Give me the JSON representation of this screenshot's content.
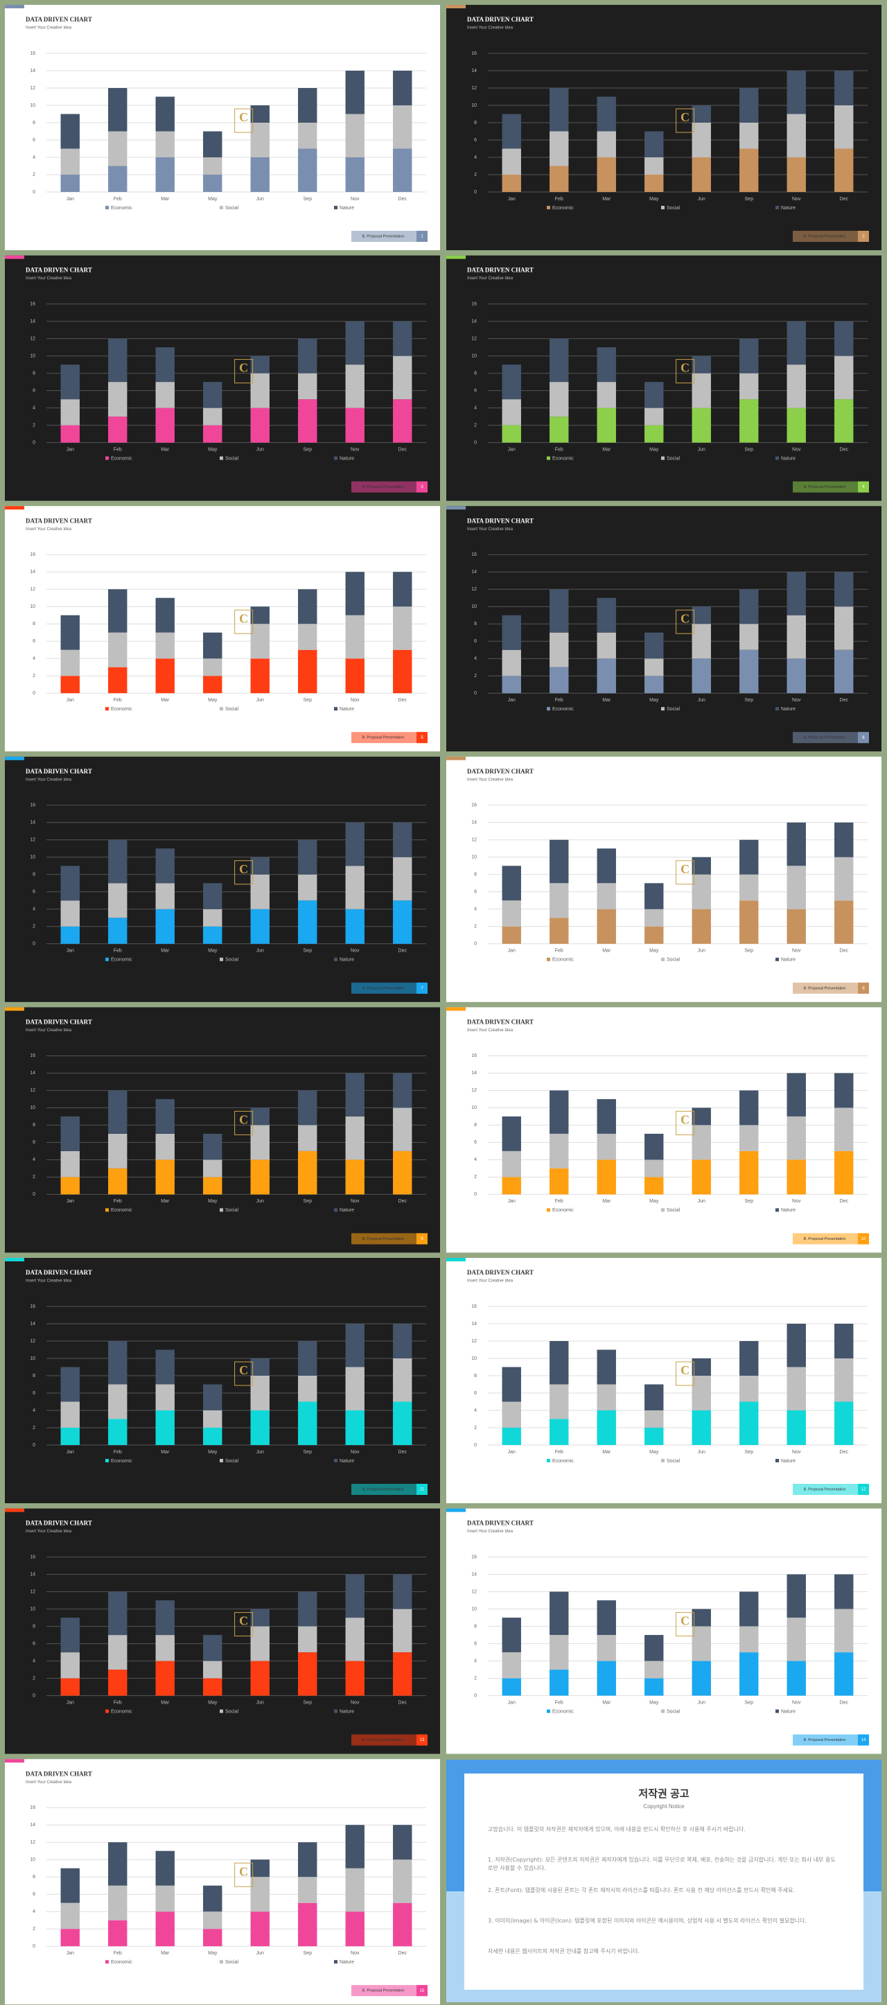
{
  "chart_data": [
    {
      "type": "bar",
      "stacked": true,
      "theme": "light",
      "title": "DATA DRIVEN CHART",
      "subtitle": "Insert Your Creative Idea",
      "footer": "B. Proposal Presentation",
      "page": 1,
      "categories": [
        "Jan",
        "Feb",
        "Mar",
        "May",
        "Jun",
        "Sep",
        "Nov",
        "Dec"
      ],
      "series": [
        {
          "name": "Economic",
          "color": "#7a8fb0",
          "values": [
            2,
            3,
            4,
            2,
            4,
            5,
            4,
            5
          ]
        },
        {
          "name": "Social",
          "color": "#bfbfbf",
          "values": [
            3,
            4,
            3,
            2,
            4,
            3,
            5,
            5
          ]
        },
        {
          "name": "Nature",
          "color": "#44546a",
          "values": [
            4,
            5,
            4,
            3,
            2,
            4,
            5,
            4
          ]
        }
      ],
      "ylim": [
        0,
        16
      ],
      "yticks": [
        0,
        2,
        4,
        6,
        8,
        10,
        12,
        14,
        16
      ],
      "grid": true
    },
    {
      "type": "bar",
      "stacked": true,
      "theme": "dark",
      "title": "DATA DRIVEN CHART",
      "subtitle": "Insert Your Creative Idea",
      "footer": "B. Proposal Presentation",
      "page": 2,
      "categories": [
        "Jan",
        "Feb",
        "Mar",
        "May",
        "Jun",
        "Sep",
        "Nov",
        "Dec"
      ],
      "series": [
        {
          "name": "Economic",
          "color": "#c8925e",
          "values": [
            2,
            3,
            4,
            2,
            4,
            5,
            4,
            5
          ]
        },
        {
          "name": "Social",
          "color": "#bfbfbf",
          "values": [
            3,
            4,
            3,
            2,
            4,
            3,
            5,
            5
          ]
        },
        {
          "name": "Nature",
          "color": "#44546a",
          "values": [
            4,
            5,
            4,
            3,
            2,
            4,
            5,
            4
          ]
        }
      ],
      "ylim": [
        0,
        16
      ],
      "yticks": [
        0,
        2,
        4,
        6,
        8,
        10,
        12,
        14,
        16
      ],
      "grid": true
    },
    {
      "type": "bar",
      "stacked": true,
      "theme": "dark",
      "title": "DATA DRIVEN CHART",
      "subtitle": "Insert Your Creative Idea",
      "footer": "B. Proposal Presentation",
      "page": 3,
      "categories": [
        "Jan",
        "Feb",
        "Mar",
        "May",
        "Jun",
        "Sep",
        "Nov",
        "Dec"
      ],
      "series": [
        {
          "name": "Economic",
          "color": "#f0469a",
          "values": [
            2,
            3,
            4,
            2,
            4,
            5,
            4,
            5
          ]
        },
        {
          "name": "Social",
          "color": "#bfbfbf",
          "values": [
            3,
            4,
            3,
            2,
            4,
            3,
            5,
            5
          ]
        },
        {
          "name": "Nature",
          "color": "#44546a",
          "values": [
            4,
            5,
            4,
            3,
            2,
            4,
            5,
            4
          ]
        }
      ],
      "ylim": [
        0,
        16
      ],
      "yticks": [
        0,
        2,
        4,
        6,
        8,
        10,
        12,
        14,
        16
      ],
      "grid": true
    },
    {
      "type": "bar",
      "stacked": true,
      "theme": "dark",
      "title": "DATA DRIVEN CHART",
      "subtitle": "Insert Your Creative Idea",
      "footer": "B. Proposal Presentation",
      "page": 4,
      "categories": [
        "Jan",
        "Feb",
        "Mar",
        "May",
        "Jun",
        "Sep",
        "Nov",
        "Dec"
      ],
      "series": [
        {
          "name": "Economic",
          "color": "#8ccf4a",
          "values": [
            2,
            3,
            4,
            2,
            4,
            5,
            4,
            5
          ]
        },
        {
          "name": "Social",
          "color": "#bfbfbf",
          "values": [
            3,
            4,
            3,
            2,
            4,
            3,
            5,
            5
          ]
        },
        {
          "name": "Nature",
          "color": "#44546a",
          "values": [
            4,
            5,
            4,
            3,
            2,
            4,
            5,
            4
          ]
        }
      ],
      "ylim": [
        0,
        16
      ],
      "yticks": [
        0,
        2,
        4,
        6,
        8,
        10,
        12,
        14,
        16
      ],
      "grid": true
    },
    {
      "type": "bar",
      "stacked": true,
      "theme": "light",
      "title": "DATA DRIVEN CHART",
      "subtitle": "Insert Your Creative Idea",
      "footer": "B. Proposal Presentation",
      "page": 5,
      "categories": [
        "Jan",
        "Feb",
        "Mar",
        "May",
        "Jun",
        "Sep",
        "Nov",
        "Dec"
      ],
      "series": [
        {
          "name": "Economic",
          "color": "#ff3d12",
          "values": [
            2,
            3,
            4,
            2,
            4,
            5,
            4,
            5
          ]
        },
        {
          "name": "Social",
          "color": "#bfbfbf",
          "values": [
            3,
            4,
            3,
            2,
            4,
            3,
            5,
            5
          ]
        },
        {
          "name": "Nature",
          "color": "#44546a",
          "values": [
            4,
            5,
            4,
            3,
            2,
            4,
            5,
            4
          ]
        }
      ],
      "ylim": [
        0,
        16
      ],
      "yticks": [
        0,
        2,
        4,
        6,
        8,
        10,
        12,
        14,
        16
      ],
      "grid": true
    },
    {
      "type": "bar",
      "stacked": true,
      "theme": "dark",
      "title": "DATA DRIVEN CHART",
      "subtitle": "Insert Your Creative Idea",
      "footer": "B. Proposal Presentation",
      "page": 6,
      "categories": [
        "Jan",
        "Feb",
        "Mar",
        "May",
        "Jun",
        "Sep",
        "Nov",
        "Dec"
      ],
      "series": [
        {
          "name": "Economic",
          "color": "#7a8fb0",
          "values": [
            2,
            3,
            4,
            2,
            4,
            5,
            4,
            5
          ]
        },
        {
          "name": "Social",
          "color": "#bfbfbf",
          "values": [
            3,
            4,
            3,
            2,
            4,
            3,
            5,
            5
          ]
        },
        {
          "name": "Nature",
          "color": "#44546a",
          "values": [
            4,
            5,
            4,
            3,
            2,
            4,
            5,
            4
          ]
        }
      ],
      "ylim": [
        0,
        16
      ],
      "yticks": [
        0,
        2,
        4,
        6,
        8,
        10,
        12,
        14,
        16
      ],
      "grid": true
    },
    {
      "type": "bar",
      "stacked": true,
      "theme": "dark",
      "title": "DATA DRIVEN CHART",
      "subtitle": "Insert Your Creative Idea",
      "footer": "B. Proposal Presentation",
      "page": 7,
      "categories": [
        "Jan",
        "Feb",
        "Mar",
        "May",
        "Jun",
        "Sep",
        "Nov",
        "Dec"
      ],
      "series": [
        {
          "name": "Economic",
          "color": "#1aa8f0",
          "values": [
            2,
            3,
            4,
            2,
            4,
            5,
            4,
            5
          ]
        },
        {
          "name": "Social",
          "color": "#bfbfbf",
          "values": [
            3,
            4,
            3,
            2,
            4,
            3,
            5,
            5
          ]
        },
        {
          "name": "Nature",
          "color": "#44546a",
          "values": [
            4,
            5,
            4,
            3,
            2,
            4,
            5,
            4
          ]
        }
      ],
      "ylim": [
        0,
        16
      ],
      "yticks": [
        0,
        2,
        4,
        6,
        8,
        10,
        12,
        14,
        16
      ],
      "grid": true
    },
    {
      "type": "bar",
      "stacked": true,
      "theme": "light",
      "title": "DATA DRIVEN CHART",
      "subtitle": "Insert Your Creative Idea",
      "footer": "B. Proposal Presentation",
      "page": 8,
      "categories": [
        "Jan",
        "Feb",
        "Mar",
        "May",
        "Jun",
        "Sep",
        "Nov",
        "Dec"
      ],
      "series": [
        {
          "name": "Economic",
          "color": "#c8925e",
          "values": [
            2,
            3,
            4,
            2,
            4,
            5,
            4,
            5
          ]
        },
        {
          "name": "Social",
          "color": "#bfbfbf",
          "values": [
            3,
            4,
            3,
            2,
            4,
            3,
            5,
            5
          ]
        },
        {
          "name": "Nature",
          "color": "#44546a",
          "values": [
            4,
            5,
            4,
            3,
            2,
            4,
            5,
            4
          ]
        }
      ],
      "ylim": [
        0,
        16
      ],
      "yticks": [
        0,
        2,
        4,
        6,
        8,
        10,
        12,
        14,
        16
      ],
      "grid": true
    },
    {
      "type": "bar",
      "stacked": true,
      "theme": "dark",
      "title": "DATA DRIVEN CHART",
      "subtitle": "Insert Your Creative Idea",
      "footer": "B. Proposal Presentation",
      "page": 9,
      "categories": [
        "Jan",
        "Feb",
        "Mar",
        "May",
        "Jun",
        "Sep",
        "Nov",
        "Dec"
      ],
      "series": [
        {
          "name": "Economic",
          "color": "#ffa010",
          "values": [
            2,
            3,
            4,
            2,
            4,
            5,
            4,
            5
          ]
        },
        {
          "name": "Social",
          "color": "#bfbfbf",
          "values": [
            3,
            4,
            3,
            2,
            4,
            3,
            5,
            5
          ]
        },
        {
          "name": "Nature",
          "color": "#44546a",
          "values": [
            4,
            5,
            4,
            3,
            2,
            4,
            5,
            4
          ]
        }
      ],
      "ylim": [
        0,
        16
      ],
      "yticks": [
        0,
        2,
        4,
        6,
        8,
        10,
        12,
        14,
        16
      ],
      "grid": true
    },
    {
      "type": "bar",
      "stacked": true,
      "theme": "light",
      "title": "DATA DRIVEN CHART",
      "subtitle": "Insert Your Creative Idea",
      "footer": "B. Proposal Presentation",
      "page": 10,
      "categories": [
        "Jan",
        "Feb",
        "Mar",
        "May",
        "Jun",
        "Sep",
        "Nov",
        "Dec"
      ],
      "series": [
        {
          "name": "Economic",
          "color": "#ffa010",
          "values": [
            2,
            3,
            4,
            2,
            4,
            5,
            4,
            5
          ]
        },
        {
          "name": "Social",
          "color": "#bfbfbf",
          "values": [
            3,
            4,
            3,
            2,
            4,
            3,
            5,
            5
          ]
        },
        {
          "name": "Nature",
          "color": "#44546a",
          "values": [
            4,
            5,
            4,
            3,
            2,
            4,
            5,
            4
          ]
        }
      ],
      "ylim": [
        0,
        16
      ],
      "yticks": [
        0,
        2,
        4,
        6,
        8,
        10,
        12,
        14,
        16
      ],
      "grid": true
    },
    {
      "type": "bar",
      "stacked": true,
      "theme": "dark",
      "title": "DATA DRIVEN CHART",
      "subtitle": "Insert Your Creative Idea",
      "footer": "B. Proposal Presentation",
      "page": 11,
      "categories": [
        "Jan",
        "Feb",
        "Mar",
        "May",
        "Jun",
        "Sep",
        "Nov",
        "Dec"
      ],
      "series": [
        {
          "name": "Economic",
          "color": "#10d8d8",
          "values": [
            2,
            3,
            4,
            2,
            4,
            5,
            4,
            5
          ]
        },
        {
          "name": "Social",
          "color": "#bfbfbf",
          "values": [
            3,
            4,
            3,
            2,
            4,
            3,
            5,
            5
          ]
        },
        {
          "name": "Nature",
          "color": "#44546a",
          "values": [
            4,
            5,
            4,
            3,
            2,
            4,
            5,
            4
          ]
        }
      ],
      "ylim": [
        0,
        16
      ],
      "yticks": [
        0,
        2,
        4,
        6,
        8,
        10,
        12,
        14,
        16
      ],
      "grid": true
    },
    {
      "type": "bar",
      "stacked": true,
      "theme": "light",
      "title": "DATA DRIVEN CHART",
      "subtitle": "Insert Your Creative Idea",
      "footer": "B. Proposal Presentation",
      "page": 12,
      "categories": [
        "Jan",
        "Feb",
        "Mar",
        "May",
        "Jun",
        "Sep",
        "Nov",
        "Dec"
      ],
      "series": [
        {
          "name": "Economic",
          "color": "#10d8d8",
          "values": [
            2,
            3,
            4,
            2,
            4,
            5,
            4,
            5
          ]
        },
        {
          "name": "Social",
          "color": "#bfbfbf",
          "values": [
            3,
            4,
            3,
            2,
            4,
            3,
            5,
            5
          ]
        },
        {
          "name": "Nature",
          "color": "#44546a",
          "values": [
            4,
            5,
            4,
            3,
            2,
            4,
            5,
            4
          ]
        }
      ],
      "ylim": [
        0,
        16
      ],
      "yticks": [
        0,
        2,
        4,
        6,
        8,
        10,
        12,
        14,
        16
      ],
      "grid": true
    },
    {
      "type": "bar",
      "stacked": true,
      "theme": "dark",
      "title": "DATA DRIVEN CHART",
      "subtitle": "Insert Your Creative Idea",
      "footer": "B. Proposal Presentation",
      "page": 13,
      "categories": [
        "Jan",
        "Feb",
        "Mar",
        "May",
        "Jun",
        "Sep",
        "Nov",
        "Dec"
      ],
      "series": [
        {
          "name": "Economic",
          "color": "#ff3d12",
          "values": [
            2,
            3,
            4,
            2,
            4,
            5,
            4,
            5
          ]
        },
        {
          "name": "Social",
          "color": "#bfbfbf",
          "values": [
            3,
            4,
            3,
            2,
            4,
            3,
            5,
            5
          ]
        },
        {
          "name": "Nature",
          "color": "#44546a",
          "values": [
            4,
            5,
            4,
            3,
            2,
            4,
            5,
            4
          ]
        }
      ],
      "ylim": [
        0,
        16
      ],
      "yticks": [
        0,
        2,
        4,
        6,
        8,
        10,
        12,
        14,
        16
      ],
      "grid": true
    },
    {
      "type": "bar",
      "stacked": true,
      "theme": "light",
      "title": "DATA DRIVEN CHART",
      "subtitle": "Insert Your Creative Idea",
      "footer": "B. Proposal Presentation",
      "page": 14,
      "categories": [
        "Jan",
        "Feb",
        "Mar",
        "May",
        "Jun",
        "Sep",
        "Nov",
        "Dec"
      ],
      "series": [
        {
          "name": "Economic",
          "color": "#1aa8f0",
          "values": [
            2,
            3,
            4,
            2,
            4,
            5,
            4,
            5
          ]
        },
        {
          "name": "Social",
          "color": "#bfbfbf",
          "values": [
            3,
            4,
            3,
            2,
            4,
            3,
            5,
            5
          ]
        },
        {
          "name": "Nature",
          "color": "#44546a",
          "values": [
            4,
            5,
            4,
            3,
            2,
            4,
            5,
            4
          ]
        }
      ],
      "ylim": [
        0,
        16
      ],
      "yticks": [
        0,
        2,
        4,
        6,
        8,
        10,
        12,
        14,
        16
      ],
      "grid": true
    },
    {
      "type": "bar",
      "stacked": true,
      "theme": "light",
      "title": "DATA DRIVEN CHART",
      "subtitle": "Insert Your Creative Idea",
      "footer": "B. Proposal Presentation",
      "page": 15,
      "categories": [
        "Jan",
        "Feb",
        "Mar",
        "May",
        "Jun",
        "Sep",
        "Nov",
        "Dec"
      ],
      "series": [
        {
          "name": "Economic",
          "color": "#f0469a",
          "values": [
            2,
            3,
            4,
            2,
            4,
            5,
            4,
            5
          ]
        },
        {
          "name": "Social",
          "color": "#bfbfbf",
          "values": [
            3,
            4,
            3,
            2,
            4,
            3,
            5,
            5
          ]
        },
        {
          "name": "Nature",
          "color": "#44546a",
          "values": [
            4,
            5,
            4,
            3,
            2,
            4,
            5,
            4
          ]
        }
      ],
      "ylim": [
        0,
        16
      ],
      "yticks": [
        0,
        2,
        4,
        6,
        8,
        10,
        12,
        14,
        16
      ],
      "grid": true
    }
  ],
  "copyright_notice": {
    "title": "저작권 공고",
    "subtitle": "Copyright Notice",
    "paragraphs": [
      "고맙습니다. 이 템플릿의 저작권은 제작자에게 있으며, 아래 내용을 반드시 확인하신 후 사용해 주시기 바랍니다.",
      "1. 저작권(Copyright): 모든 콘텐츠의 저작권은 제작자에게 있습니다. 이를 무단으로 복제, 배포, 전송하는 것을 금지합니다. 개인 또는 회사 내부 용도로만 사용할 수 있습니다.",
      "2. 폰트(Font): 템플릿에 사용된 폰트는 각 폰트 제작사의 라이선스를 따릅니다. 폰트 사용 전 해당 라이선스를 반드시 확인해 주세요.",
      "3. 이미지(Image) & 아이콘(Icon): 템플릿에 포함된 이미지와 아이콘은 예시용이며, 상업적 사용 시 별도의 라이선스 확인이 필요합니다.",
      "자세한 내용은 웹사이트의 저작권 안내를 참고해 주시기 바랍니다."
    ]
  }
}
